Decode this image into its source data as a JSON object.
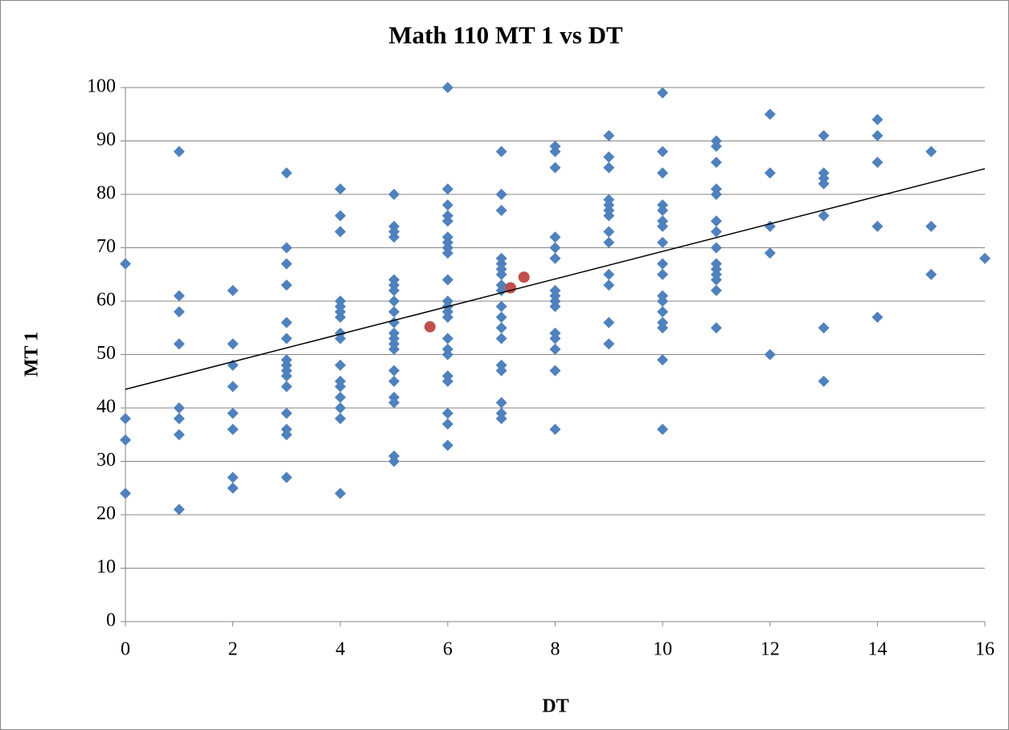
{
  "chart_data": {
    "type": "scatter",
    "title": "Math 110 MT 1 vs DT",
    "x_label": "DT",
    "y_label": "MT 1",
    "xlim": [
      0,
      16
    ],
    "xticks": [
      0,
      2,
      4,
      6,
      8,
      10,
      12,
      14,
      16
    ],
    "ylim": [
      0,
      100
    ],
    "yticks": [
      0,
      10,
      20,
      30,
      40,
      50,
      60,
      70,
      80,
      90,
      100
    ],
    "grid": true,
    "series": [
      {
        "color": "#4f81bd",
        "marker": "diamond",
        "x": [
          0,
          0,
          0,
          0,
          1,
          1,
          1,
          1,
          1,
          1,
          1,
          1,
          2,
          2,
          2,
          2,
          2,
          2,
          2,
          2,
          3,
          3,
          3,
          3,
          3,
          3,
          3,
          3,
          3,
          3,
          3,
          3,
          3,
          3,
          3,
          4,
          4,
          4,
          4,
          4,
          4,
          4,
          4,
          4,
          4,
          4,
          4,
          4,
          4,
          4,
          4,
          5,
          5,
          5,
          5,
          5,
          5,
          5,
          5,
          5,
          5,
          5,
          5,
          5,
          5,
          5,
          5,
          5,
          5,
          5,
          5,
          6,
          6,
          6,
          6,
          6,
          6,
          6,
          6,
          6,
          6,
          6,
          6,
          6,
          6,
          6,
          6,
          6,
          6,
          6,
          6,
          6,
          6,
          7,
          7,
          7,
          7,
          7,
          7,
          7,
          7,
          7,
          7,
          7,
          7,
          7,
          7,
          7,
          7,
          7,
          7,
          8,
          8,
          8,
          8,
          8,
          8,
          8,
          8,
          8,
          8,
          8,
          8,
          8,
          8,
          8,
          9,
          9,
          9,
          9,
          9,
          9,
          9,
          9,
          9,
          9,
          9,
          9,
          9,
          10,
          10,
          10,
          10,
          10,
          10,
          10,
          10,
          10,
          10,
          10,
          10,
          10,
          10,
          10,
          10,
          10,
          11,
          11,
          11,
          11,
          11,
          11,
          11,
          11,
          11,
          11,
          11,
          11,
          11,
          11,
          12,
          12,
          12,
          12,
          12,
          13,
          13,
          13,
          13,
          13,
          13,
          13,
          14,
          14,
          14,
          14,
          14,
          15,
          15,
          15,
          16
        ],
        "values": [
          67,
          38,
          34,
          24,
          88,
          61,
          58,
          52,
          40,
          38,
          35,
          21,
          62,
          52,
          48,
          44,
          39,
          36,
          27,
          25,
          84,
          70,
          67,
          63,
          56,
          53,
          49,
          48,
          47,
          46,
          44,
          39,
          36,
          35,
          27,
          81,
          76,
          73,
          60,
          59,
          58,
          57,
          54,
          53,
          48,
          45,
          44,
          42,
          40,
          38,
          24,
          80,
          74,
          73,
          72,
          64,
          63,
          62,
          60,
          58,
          56,
          54,
          53,
          52,
          51,
          47,
          45,
          42,
          41,
          31,
          30,
          100,
          81,
          78,
          76,
          75,
          72,
          71,
          70,
          69,
          64,
          60,
          59,
          58,
          57,
          53,
          51,
          50,
          46,
          45,
          39,
          37,
          33,
          88,
          80,
          77,
          68,
          67,
          66,
          65,
          63,
          62,
          59,
          57,
          55,
          53,
          48,
          47,
          41,
          39,
          38,
          89,
          88,
          85,
          72,
          70,
          68,
          62,
          61,
          60,
          59,
          54,
          53,
          51,
          47,
          36,
          91,
          87,
          85,
          79,
          78,
          77,
          76,
          73,
          71,
          65,
          63,
          56,
          52,
          99,
          88,
          84,
          78,
          77,
          75,
          74,
          71,
          67,
          65,
          61,
          60,
          58,
          56,
          55,
          49,
          36,
          90,
          89,
          86,
          81,
          80,
          75,
          73,
          70,
          67,
          66,
          65,
          64,
          62,
          55,
          95,
          84,
          74,
          69,
          50,
          91,
          84,
          83,
          82,
          76,
          55,
          45,
          94,
          91,
          86,
          74,
          57,
          88,
          74,
          65,
          68
        ]
      },
      {
        "color": "#c0504d",
        "marker": "circle",
        "x": [
          5.67,
          7.17,
          7.42
        ],
        "values": [
          55.2,
          62.5,
          64.5
        ]
      },
      {
        "color": "#000000",
        "marker": "line",
        "x": [
          0,
          16
        ],
        "values": [
          43.5,
          84.8
        ]
      }
    ]
  }
}
